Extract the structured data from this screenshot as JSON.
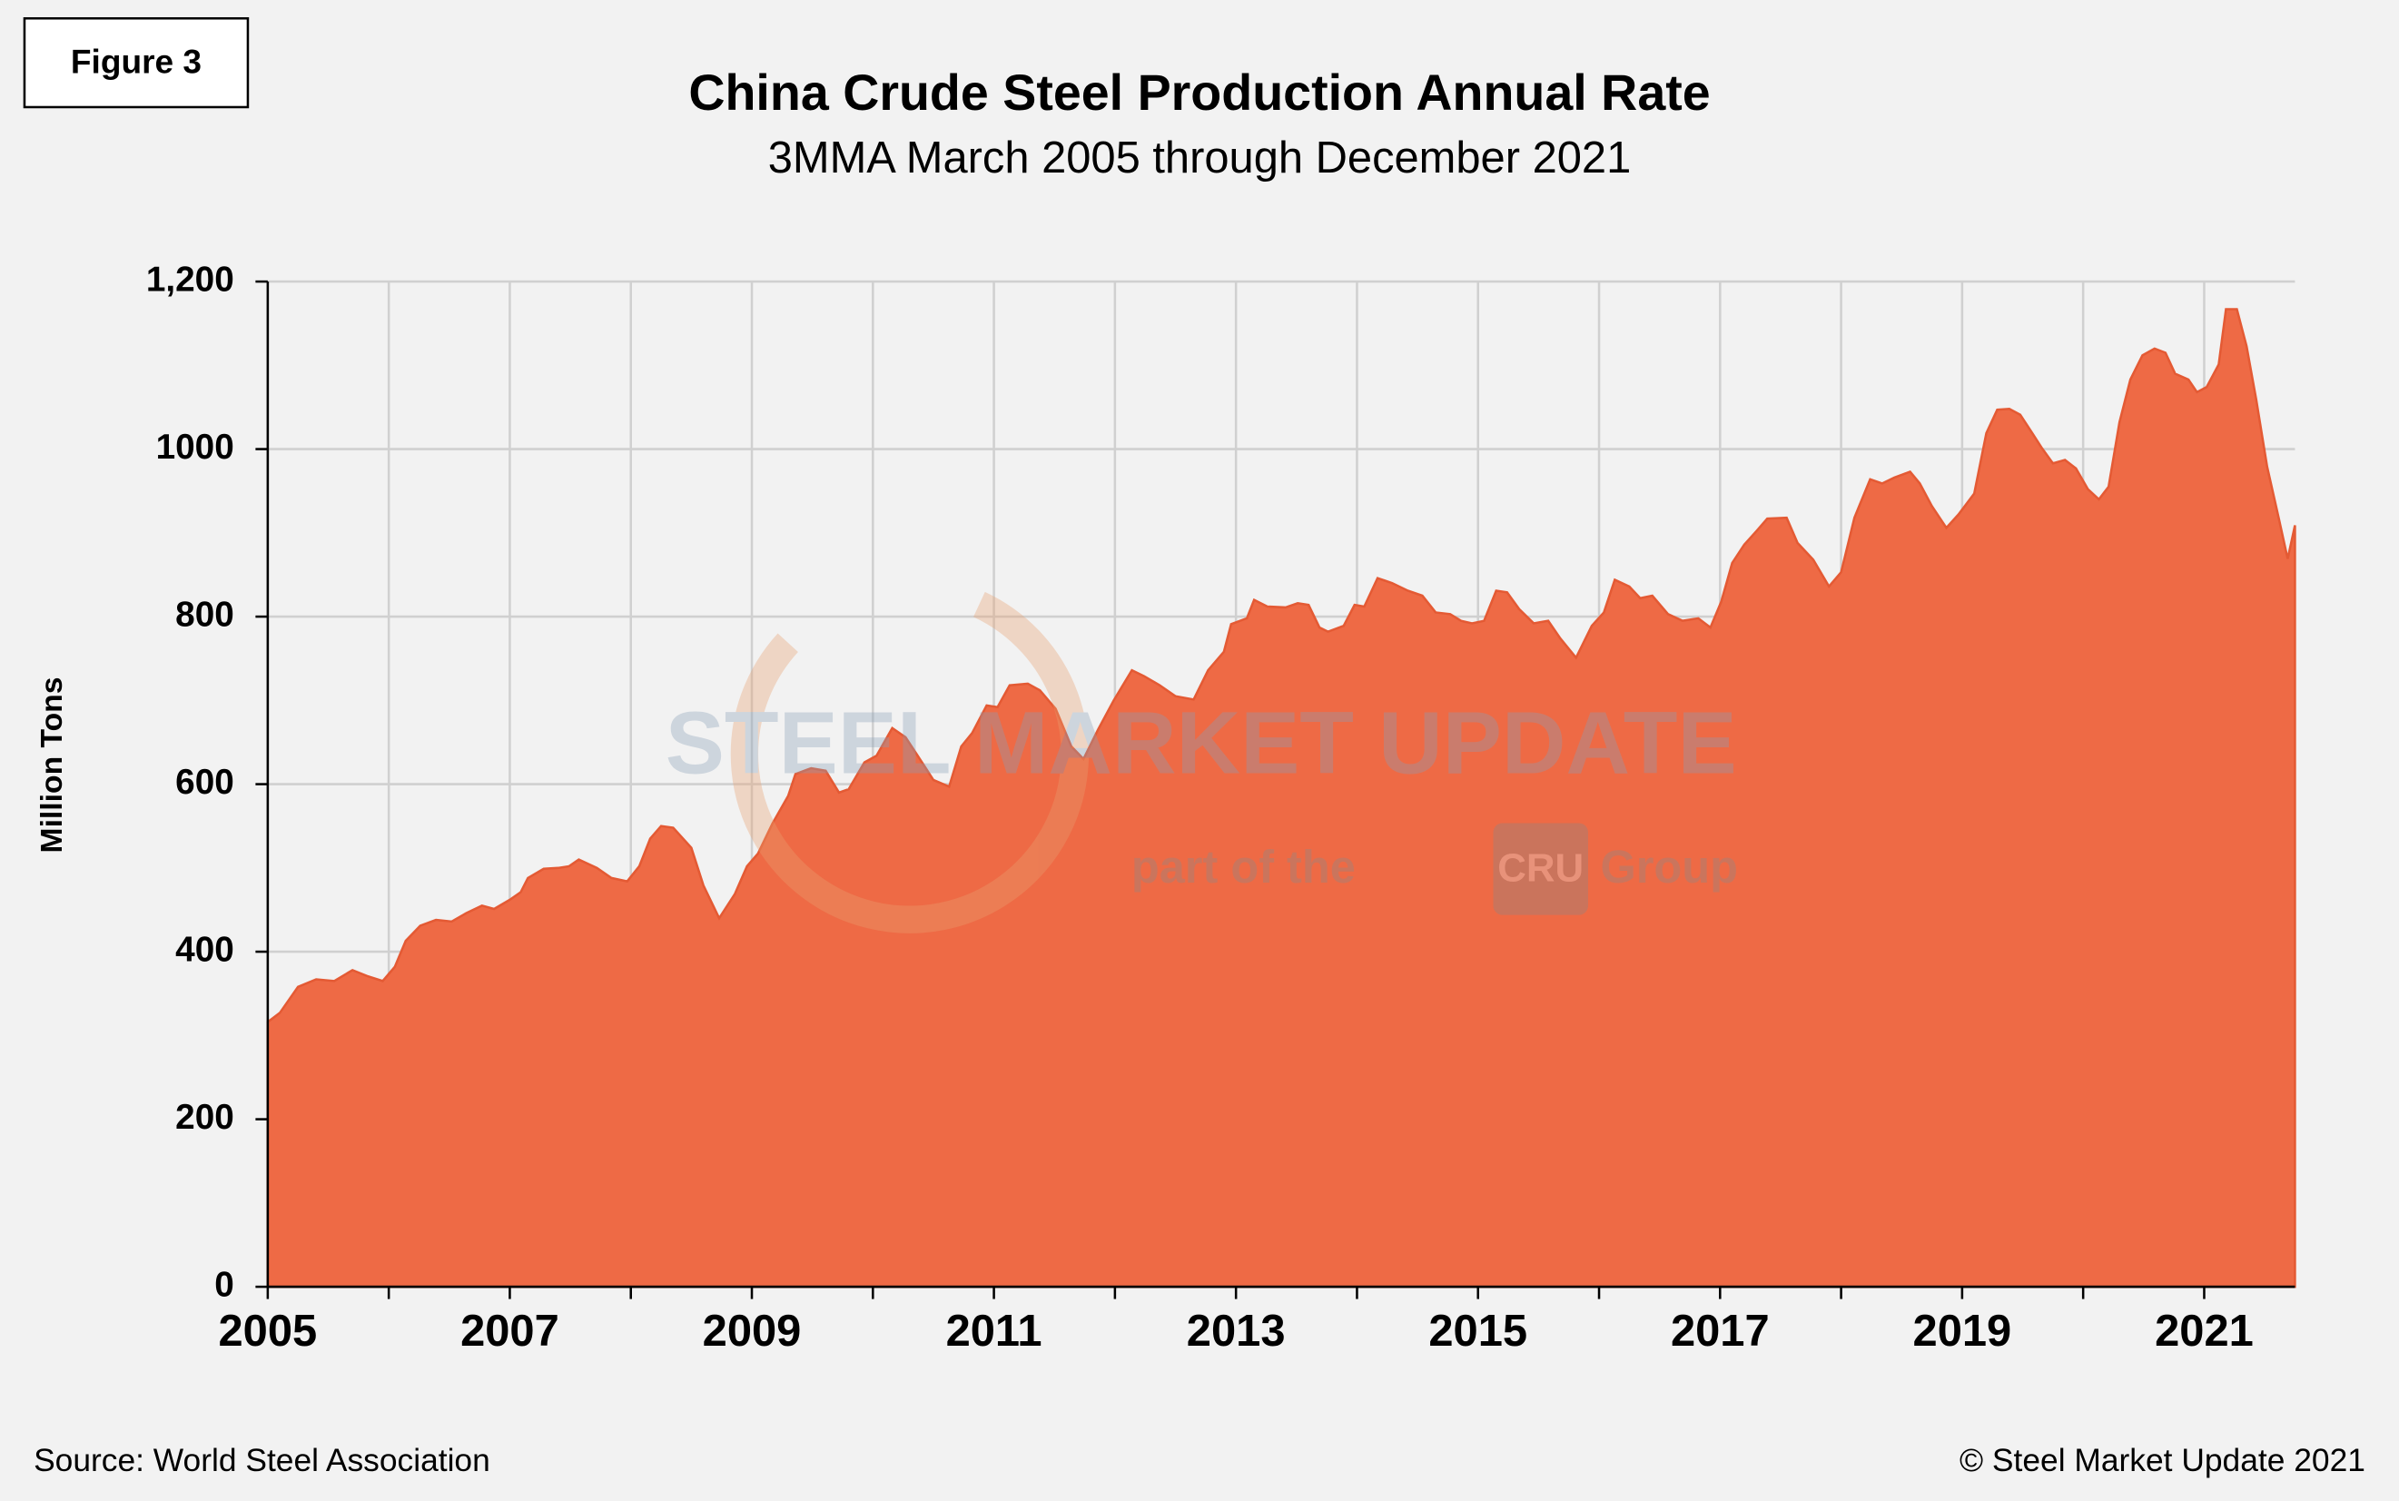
{
  "figure_label": "Figure 3",
  "source": "Source: World Steel Association",
  "copyright": "© Steel Market Update 2021",
  "watermark": {
    "brand": "STEEL MARKET UPDATE",
    "tagline_start": "part of the",
    "group_logo": "CRU",
    "tagline_end": "Group"
  },
  "chart_data": {
    "type": "area",
    "title": "China Crude Steel Production Annual Rate",
    "subtitle": "3MMA March 2005 through December 2021",
    "y_label": "Million Tons",
    "color": "#ee6a45",
    "grid": true,
    "xlim": [
      2005,
      2021.75
    ],
    "xticks": [
      2005,
      2007,
      2009,
      2011,
      2013,
      2015,
      2017,
      2019,
      2021
    ],
    "x_minor_ticks": [
      2006,
      2008,
      2010,
      2012,
      2014,
      2016,
      2018,
      2020
    ],
    "ylim": [
      0,
      1200
    ],
    "yticks": [
      0,
      200,
      400,
      600,
      800,
      1000,
      {
        "value": 1200,
        "label": "1,200"
      }
    ],
    "x": [
      2005.0,
      2005.1,
      2005.25,
      2005.4,
      2005.55,
      2005.7,
      2005.82,
      2005.95,
      2006.05,
      2006.14,
      2006.26,
      2006.39,
      2006.52,
      2006.64,
      2006.77,
      2006.87,
      2007.0,
      2007.09,
      2007.15,
      2007.28,
      2007.4,
      2007.49,
      2007.57,
      2007.72,
      2007.84,
      2007.97,
      2008.07,
      2008.16,
      2008.25,
      2008.35,
      2008.5,
      2008.6,
      2008.73,
      2008.86,
      2008.96,
      2009.05,
      2009.17,
      2009.3,
      2009.36,
      2009.49,
      2009.61,
      2009.72,
      2009.8,
      2009.93,
      2010.03,
      2010.16,
      2010.27,
      2010.37,
      2010.5,
      2010.63,
      2010.73,
      2010.82,
      2010.94,
      2011.03,
      2011.13,
      2011.28,
      2011.38,
      2011.51,
      2011.64,
      2011.74,
      2011.86,
      2011.99,
      2012.14,
      2012.24,
      2012.37,
      2012.5,
      2012.65,
      2012.77,
      2012.9,
      2012.96,
      2013.09,
      2013.15,
      2013.26,
      2013.41,
      2013.51,
      2013.6,
      2013.69,
      2013.76,
      2013.89,
      2013.98,
      2014.06,
      2014.17,
      2014.29,
      2014.42,
      2014.54,
      2014.65,
      2014.77,
      2014.86,
      2014.95,
      2015.05,
      2015.15,
      2015.24,
      2015.34,
      2015.46,
      2015.58,
      2015.68,
      2015.81,
      2015.94,
      2016.04,
      2016.13,
      2016.25,
      2016.34,
      2016.44,
      2016.57,
      2016.69,
      2016.82,
      2016.92,
      2017.01,
      2017.1,
      2017.2,
      2017.3,
      2017.39,
      2017.55,
      2017.64,
      2017.77,
      2017.9,
      2018.0,
      2018.11,
      2018.24,
      2018.34,
      2018.44,
      2018.57,
      2018.65,
      2018.75,
      2018.87,
      2018.97,
      2019.1,
      2019.2,
      2019.29,
      2019.39,
      2019.48,
      2019.58,
      2019.66,
      2019.75,
      2019.85,
      2019.94,
      2020.04,
      2020.13,
      2020.21,
      2020.3,
      2020.39,
      2020.49,
      2020.59,
      2020.68,
      2020.76,
      2020.87,
      2020.94,
      2021.02,
      2021.12,
      2021.18,
      2021.27,
      2021.35,
      2021.43,
      2021.52,
      2021.62,
      2021.69,
      2021.75
    ],
    "values": [
      316,
      327,
      358,
      367,
      365,
      378,
      371,
      365,
      382,
      413,
      431,
      438,
      436,
      446,
      455,
      451,
      462,
      471,
      488,
      499,
      500,
      502,
      510,
      500,
      488,
      484,
      502,
      535,
      550,
      548,
      524,
      479,
      440,
      469,
      502,
      517,
      553,
      586,
      612,
      619,
      616,
      590,
      594,
      626,
      634,
      667,
      656,
      634,
      605,
      597,
      645,
      661,
      694,
      692,
      718,
      720,
      712,
      690,
      645,
      630,
      665,
      700,
      736,
      729,
      718,
      705,
      701,
      736,
      758,
      791,
      798,
      820,
      812,
      811,
      816,
      814,
      787,
      782,
      789,
      814,
      812,
      846,
      840,
      831,
      825,
      805,
      803,
      795,
      792,
      795,
      831,
      829,
      809,
      792,
      795,
      774,
      751,
      789,
      805,
      844,
      836,
      822,
      825,
      803,
      795,
      798,
      787,
      818,
      864,
      886,
      902,
      917,
      918,
      888,
      868,
      836,
      853,
      918,
      964,
      959,
      966,
      973,
      959,
      932,
      906,
      922,
      947,
      1019,
      1047,
      1048,
      1041,
      1019,
      1001,
      983,
      987,
      977,
      952,
      940,
      955,
      1032,
      1083,
      1112,
      1120,
      1115,
      1090,
      1083,
      1068,
      1074,
      1101,
      1167,
      1167,
      1123,
      1059,
      979,
      915,
      869,
      909
    ]
  }
}
